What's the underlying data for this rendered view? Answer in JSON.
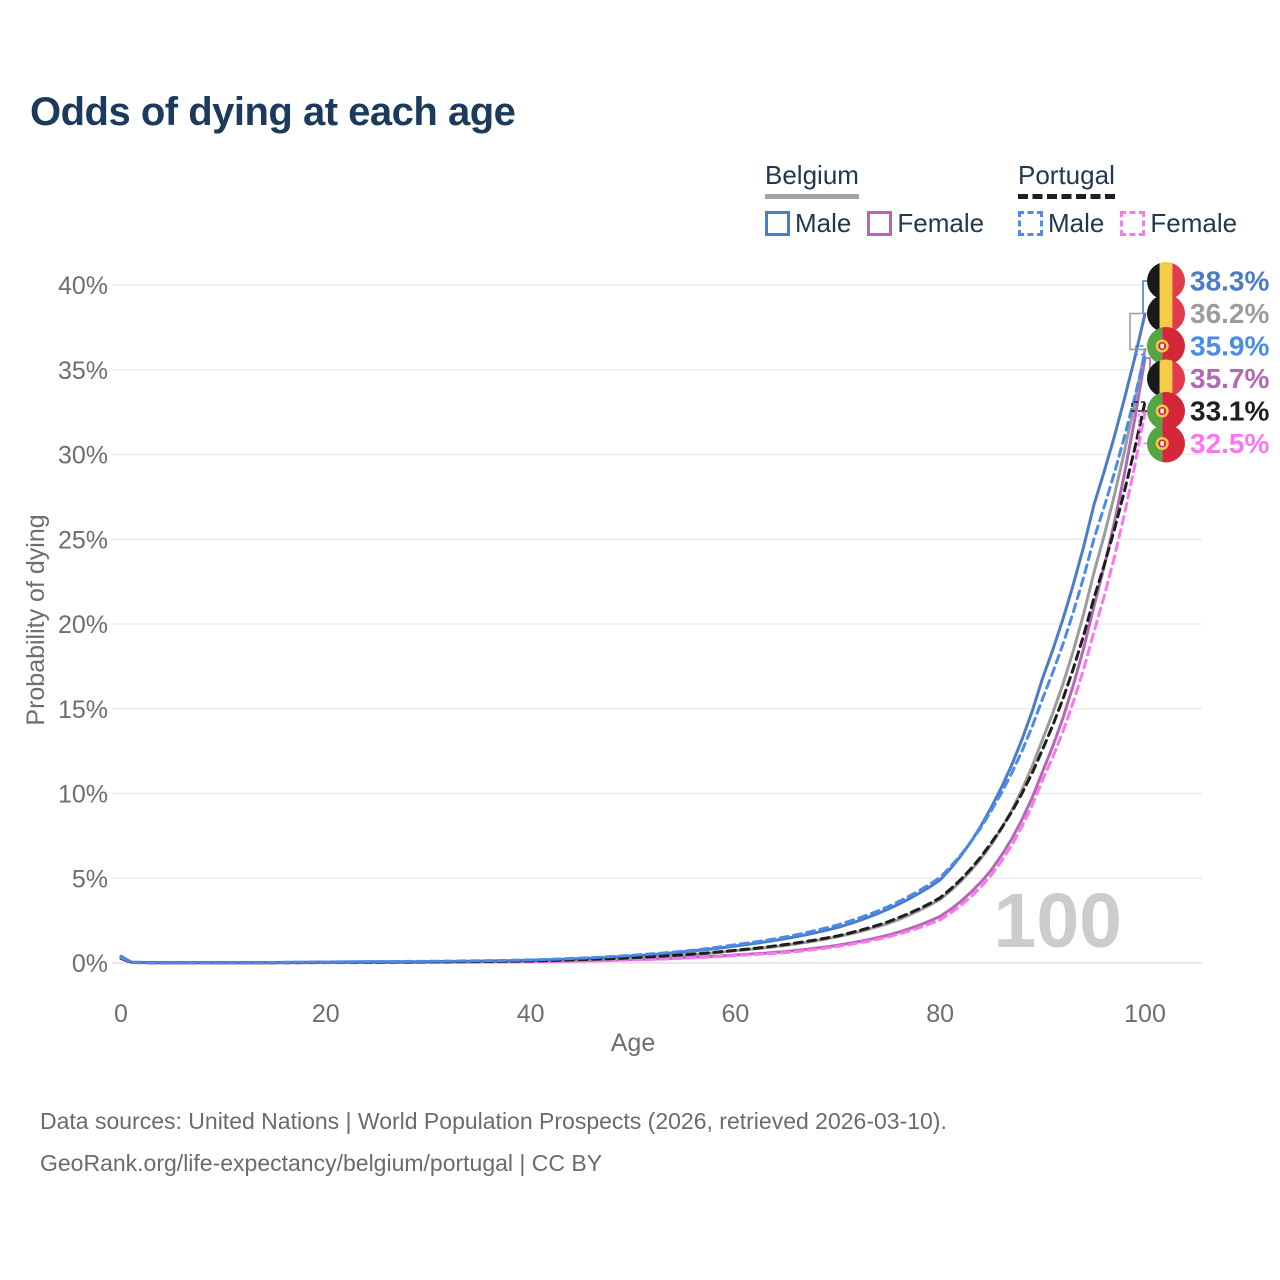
{
  "title": "Odds of dying at each age",
  "legend": {
    "groups": [
      {
        "country": "Belgium",
        "line_style": "solid",
        "items": [
          {
            "label": "Male"
          },
          {
            "label": "Female"
          }
        ]
      },
      {
        "country": "Portugal",
        "line_style": "dashed",
        "items": [
          {
            "label": "Male"
          },
          {
            "label": "Female"
          }
        ]
      }
    ]
  },
  "footer": {
    "line1": "Data sources: United Nations | World Population Prospects (2026, retrieved 2026-03-10).",
    "line2": "GeoRank.org/life-expectancy/belgium/portugal | CC BY"
  },
  "colors": {
    "title_text": "#1c3a5c",
    "legend_text": "#22384f",
    "axis_text": "#6e6e6e",
    "gridline": "#e9e9e9",
    "zero_line": "#d9d9d9",
    "watermark": "#cccccc",
    "belgium_underline": "#a3a3a3",
    "portugal_underline": "#1f1f1f",
    "belgium_flag": {
      "black": "#1a1a1a",
      "yellow": "#F6CB45",
      "red": "#E23B4E"
    },
    "portugal_flag": {
      "green": "#55A546",
      "red": "#D5273B",
      "emblem_yellow": "#F6CB45"
    }
  },
  "chart_data": {
    "type": "line",
    "title": "Odds of dying at each age",
    "xlabel": "Age",
    "ylabel": "Probability of dying",
    "xlim": [
      0,
      100
    ],
    "ylim": [
      0,
      40
    ],
    "x_ticks": [
      0,
      20,
      40,
      60,
      80,
      100
    ],
    "y_ticks": [
      0,
      5,
      10,
      15,
      20,
      25,
      30,
      35,
      40
    ],
    "y_tick_suffix": "%",
    "grid": "horizontal-only",
    "legend_position": "top-right",
    "watermark_age_counter": "100",
    "ages": [
      0,
      1,
      5,
      10,
      15,
      20,
      25,
      30,
      35,
      40,
      45,
      50,
      55,
      60,
      65,
      70,
      75,
      80,
      85,
      90,
      95,
      100
    ],
    "series": [
      {
        "name": "Belgium Male",
        "country": "Belgium",
        "sex": "Male",
        "flag": "belgium",
        "color": "#4C7BC8",
        "dashed": false,
        "end_label": "38.3%",
        "end_value": 38.3,
        "values": [
          0.4,
          0.05,
          0.01,
          0.01,
          0.03,
          0.06,
          0.07,
          0.08,
          0.11,
          0.16,
          0.26,
          0.42,
          0.66,
          1.0,
          1.45,
          2.1,
          3.2,
          4.9,
          9.2,
          16.8,
          27.0,
          38.3
        ]
      },
      {
        "name": "Belgium Both sexes",
        "country": "Belgium",
        "sex": "Both",
        "flag": "belgium",
        "color": "#9C9C9C",
        "dashed": false,
        "end_label": "36.2%",
        "end_value": 36.2,
        "values": [
          0.35,
          0.04,
          0.01,
          0.01,
          0.02,
          0.04,
          0.05,
          0.06,
          0.08,
          0.12,
          0.19,
          0.3,
          0.47,
          0.72,
          1.05,
          1.55,
          2.35,
          3.75,
          7.0,
          13.2,
          23.0,
          36.2
        ]
      },
      {
        "name": "Portugal Male",
        "country": "Portugal",
        "sex": "Male",
        "flag": "portugal",
        "color": "#4B8BE9",
        "dashed": true,
        "end_label": "35.9%",
        "end_value": 35.9,
        "values": [
          0.32,
          0.04,
          0.01,
          0.01,
          0.03,
          0.06,
          0.08,
          0.1,
          0.13,
          0.18,
          0.29,
          0.46,
          0.7,
          1.08,
          1.55,
          2.25,
          3.35,
          5.05,
          9.0,
          15.6,
          25.0,
          35.9
        ]
      },
      {
        "name": "Belgium Female",
        "country": "Belgium",
        "sex": "Female",
        "flag": "belgium",
        "color": "#B269B4",
        "dashed": false,
        "end_label": "35.7%",
        "end_value": 35.7,
        "values": [
          0.33,
          0.04,
          0.01,
          0.01,
          0.02,
          0.03,
          0.03,
          0.04,
          0.06,
          0.08,
          0.13,
          0.2,
          0.31,
          0.47,
          0.68,
          1.05,
          1.65,
          2.75,
          5.5,
          11.3,
          21.0,
          35.7
        ]
      },
      {
        "name": "Portugal Both sexes",
        "country": "Portugal",
        "sex": "Both",
        "flag": "portugal",
        "color": "#1F1F1F",
        "dashed": true,
        "end_label": "33.1%",
        "end_value": 33.1,
        "values": [
          0.28,
          0.03,
          0.01,
          0.01,
          0.02,
          0.04,
          0.05,
          0.07,
          0.09,
          0.12,
          0.2,
          0.31,
          0.49,
          0.75,
          1.1,
          1.6,
          2.45,
          3.85,
          7.1,
          12.6,
          21.5,
          33.1
        ]
      },
      {
        "name": "Portugal Female",
        "country": "Portugal",
        "sex": "Female",
        "flag": "portugal",
        "color": "#FB76EF",
        "dashed": true,
        "end_label": "32.5%",
        "end_value": 32.5,
        "values": [
          0.26,
          0.03,
          0.01,
          0.01,
          0.01,
          0.02,
          0.03,
          0.04,
          0.05,
          0.07,
          0.11,
          0.18,
          0.28,
          0.44,
          0.62,
          0.98,
          1.55,
          2.55,
          5.2,
          10.8,
          19.5,
          32.5
        ]
      }
    ]
  }
}
